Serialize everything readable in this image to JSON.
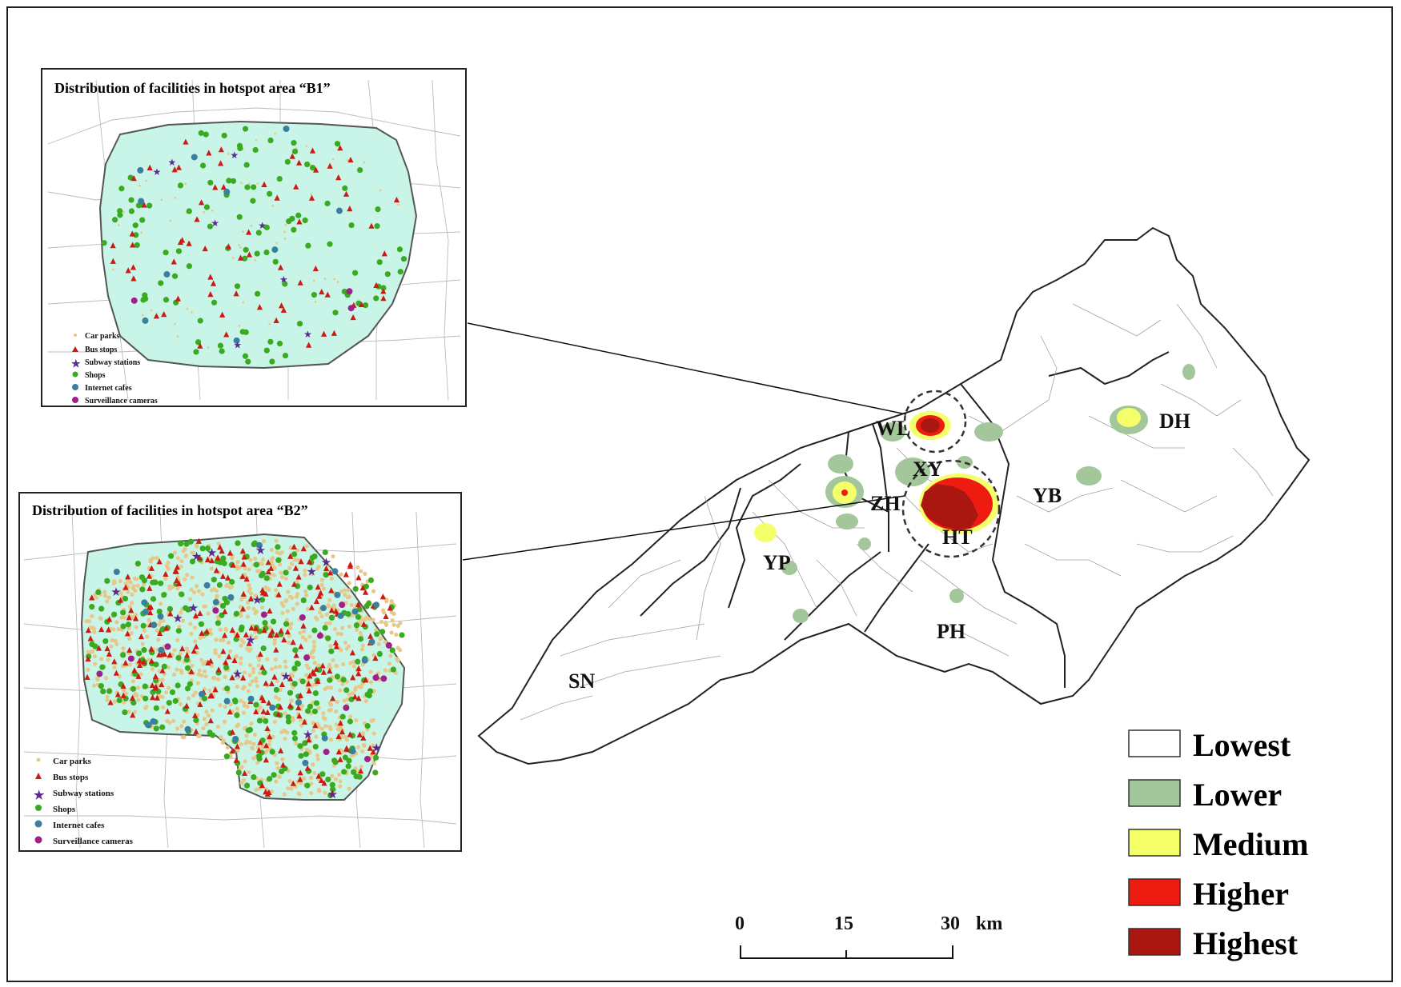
{
  "inset_b1": {
    "title": "Distribution of  facilities in hotspot area “B1”",
    "legend": [
      "Car parks",
      "Bus stops",
      "Subway stations",
      "Shops",
      "Internet cafes",
      "Surveillance cameras"
    ]
  },
  "inset_b2": {
    "title": "Distribution of facilities in hotspot area “B2”",
    "legend": [
      "Car parks",
      "Bus stops",
      "Subway stations",
      "Shops",
      "Internet cafes",
      "Surveillance cameras"
    ]
  },
  "districts": {
    "WL": "WL",
    "XY": "XY",
    "ZH": "ZH",
    "HT": "HT",
    "YB": "YB",
    "DH": "DH",
    "YP": "YP",
    "PH": "PH",
    "SN": "SN"
  },
  "legend": {
    "lowest": "Lowest",
    "lower": "Lower",
    "medium": "Medium",
    "higher": "Higher",
    "highest": "Highest"
  },
  "scale_bar": {
    "t0": "0",
    "t1": "15",
    "t2": "30",
    "unit": "km"
  },
  "colors": {
    "lowest": "#ffffff",
    "lower": "#a3c79a",
    "medium": "#f5ff6a",
    "higher": "#ee1c10",
    "highest": "#aa1710",
    "hotspot_fill": "#c9f5e8",
    "car_parks": "#e8c88a",
    "bus_stops": "#cc1a14",
    "subway": "#5a2a90",
    "shops": "#3aaa20",
    "internet_cafes": "#3a7fa0",
    "cameras": "#a0208a"
  }
}
